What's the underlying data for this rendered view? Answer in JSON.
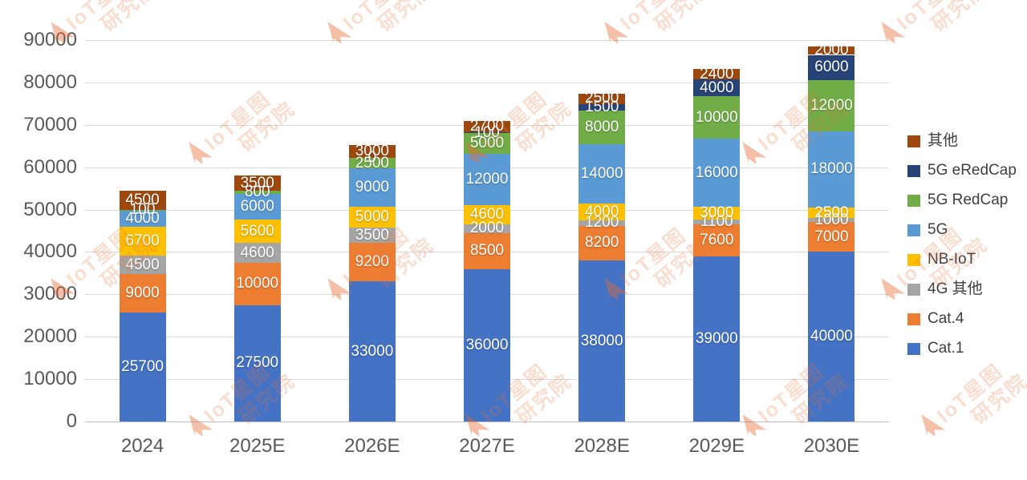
{
  "chart_data": {
    "type": "bar",
    "subtype": "stacked-column",
    "title": "",
    "xlabel": "",
    "ylabel": "",
    "categories": [
      "2024",
      "2025E",
      "2026E",
      "2027E",
      "2028E",
      "2029E",
      "2030E"
    ],
    "series": [
      {
        "name": "Cat.1",
        "color": "#4472C4",
        "values": [
          25700,
          27500,
          33000,
          36000,
          38000,
          39000,
          40000
        ]
      },
      {
        "name": "Cat.4",
        "color": "#ED7D31",
        "values": [
          9000,
          10000,
          9200,
          8500,
          8200,
          7600,
          7000
        ]
      },
      {
        "name": "4G 其他",
        "color": "#A5A5A5",
        "values": [
          4500,
          4600,
          3500,
          2000,
          1200,
          1100,
          1000
        ]
      },
      {
        "name": "NB-IoT",
        "color": "#FFC000",
        "values": [
          6700,
          5600,
          5000,
          4600,
          4000,
          3000,
          2500
        ]
      },
      {
        "name": "5G",
        "color": "#5B9BD5",
        "values": [
          4000,
          6000,
          9000,
          12000,
          14000,
          16000,
          18000
        ]
      },
      {
        "name": "5G RedCap",
        "color": "#70AD47",
        "values": [
          100,
          800,
          2500,
          5000,
          8000,
          10000,
          12000
        ]
      },
      {
        "name": "5G eRedCap",
        "color": "#264478",
        "values": [
          0,
          0,
          0,
          100,
          1500,
          4000,
          6000
        ],
        "labels": [
          null,
          null,
          "0",
          "100",
          "1500",
          "4000",
          "6000"
        ]
      },
      {
        "name": "其他",
        "color": "#9E480E",
        "values": [
          4500,
          3500,
          3000,
          2700,
          2500,
          2400,
          2000
        ]
      }
    ],
    "totals": [
      54500,
      58000,
      65200,
      70900,
      77400,
      83100,
      88500
    ],
    "ylim": [
      0,
      90000
    ],
    "yticks": [
      0,
      10000,
      20000,
      30000,
      40000,
      50000,
      60000,
      70000,
      80000,
      90000
    ],
    "grid": "horizontal",
    "legend_position": "right",
    "legend_order_top_to_bottom": [
      "其他",
      "5G eRedCap",
      "5G RedCap",
      "5G",
      "NB-IoT",
      "4G 其他",
      "Cat.4",
      "Cat.1"
    ],
    "data_label_color": "#FFFFFF",
    "axis_label_color": "#595959",
    "gridline_color": "#D9D9D9"
  },
  "watermark": {
    "arrow_icon": "aiot-logo-arrow",
    "line1": "IoT星图",
    "line2": "研究院",
    "color": "#EB763C"
  }
}
